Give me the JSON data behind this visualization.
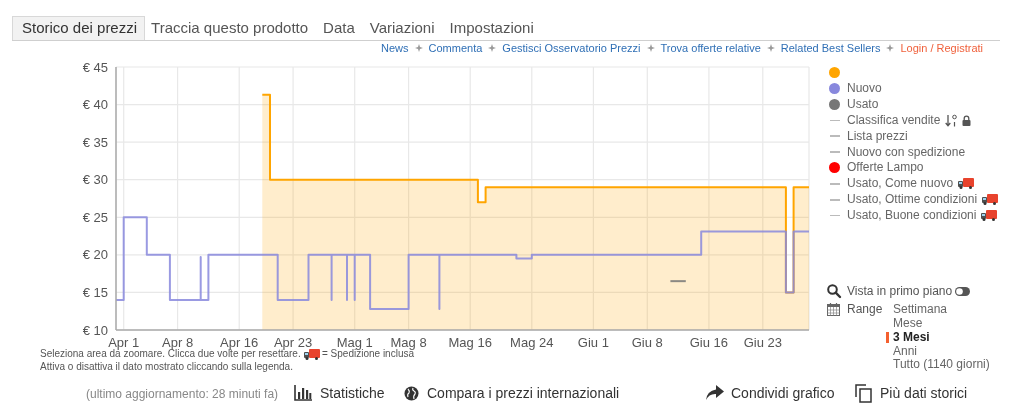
{
  "chart_data": {
    "type": "step",
    "xlim": [
      "--03-31",
      "--06-29"
    ],
    "xticks": [
      {
        "value": "--04-01",
        "label": "Apr 1"
      },
      {
        "value": "--04-08",
        "label": "Apr 8"
      },
      {
        "value": "--04-16",
        "label": "Apr 16"
      },
      {
        "value": "--04-23",
        "label": "Apr 23"
      },
      {
        "value": "--05-01",
        "label": "Mag 1"
      },
      {
        "value": "--05-08",
        "label": "Mag 8"
      },
      {
        "value": "--05-16",
        "label": "Mag 16"
      },
      {
        "value": "--05-24",
        "label": "Mag 24"
      },
      {
        "value": "--06-01",
        "label": "Giu 1"
      },
      {
        "value": "--06-08",
        "label": "Giu 8"
      },
      {
        "value": "--06-16",
        "label": "Giu 16"
      },
      {
        "value": "--06-23",
        "label": "Giu 23"
      }
    ],
    "ylim": [
      10,
      45
    ],
    "yticks": [
      {
        "value": 10,
        "label": "€ 10"
      },
      {
        "value": 15,
        "label": "€ 15"
      },
      {
        "value": 20,
        "label": "€ 20"
      },
      {
        "value": 25,
        "label": "€ 25"
      },
      {
        "value": 30,
        "label": "€ 30"
      },
      {
        "value": 35,
        "label": "€ 35"
      },
      {
        "value": 40,
        "label": "€ 40"
      },
      {
        "value": 45,
        "label": "€ 45"
      }
    ],
    "grid": true,
    "legend": "right",
    "series": [
      {
        "type": "area",
        "color": "#ffa500",
        "x": [
          "--04-19",
          "--04-20",
          "--04-20",
          "--05-17",
          "--05-17",
          "--05-18",
          "--05-18",
          "--06-26",
          "--06-26",
          "--06-27",
          "--06-27",
          "--06-29"
        ],
        "values": [
          41.3,
          41.3,
          30,
          30,
          27,
          27,
          29,
          29,
          15,
          15,
          29,
          29
        ]
      },
      {
        "name": "Nuovo",
        "color": "#8888dd",
        "x": [
          "--03-31",
          "--04-01",
          "--04-01",
          "--04-01",
          "--04-04",
          "--04-07",
          "--04-11",
          "--04-11",
          "--04-12",
          "--04-21",
          "--04-25",
          "--04-28",
          "--04-28",
          "--04-30",
          "--04-30",
          "--05-01",
          "--05-01",
          "--05-03",
          "--05-03",
          "--05-08",
          "--05-12",
          "--05-12",
          "--05-22",
          "--05-24",
          "--06-15",
          "--06-26",
          "--06-27",
          "--06-29"
        ],
        "values": [
          14,
          25,
          14,
          25,
          20,
          14,
          19.7,
          14,
          20,
          14,
          20,
          14,
          20,
          14,
          20,
          14,
          20,
          14,
          12.8,
          20,
          12.8,
          20,
          19.5,
          20,
          23.1,
          15,
          23.1,
          23.1
        ]
      },
      {
        "name": "Usato",
        "color": "#777777",
        "x": [
          "--06-11",
          "--06-13"
        ],
        "values": [
          16.5,
          16.5
        ]
      },
      {
        "name": "Classifica vendite",
        "type": "line",
        "color": "#bbbbbb"
      },
      {
        "name": "Lista prezzi",
        "type": "line",
        "color": "#bbbbbb"
      },
      {
        "name": "Nuovo con spedizione",
        "type": "line",
        "color": "#bbbbbb"
      },
      {
        "name": "Offerte Lampo",
        "color": "#ff0000"
      },
      {
        "name": "Usato, Come nuovo",
        "type": "line",
        "color": "#bbbbbb"
      },
      {
        "name": "Usato, Ottime condizioni",
        "type": "line",
        "color": "#bbbbbb"
      },
      {
        "name": "Usato, Buone condizioni",
        "type": "line",
        "color": "#bbbbbb"
      }
    ],
    "annotations": [
      "Storico dei prezzi",
      "Traccia questo prodotto",
      "Data",
      "Variazioni",
      "Impostazioni",
      "News",
      "Commenta",
      "Gestisci Osservatorio Prezzi",
      "Trova offerte relative",
      "Related Best Sellers",
      "Login / Registrati",
      "Seleziona area da zoomare. Clicca due volte per resettare.",
      "= Spedizione inclusa",
      "Attiva o disattiva il dato mostrato cliccando sulla legenda.",
      "Vista in primo piano",
      "Range",
      "Settimana",
      "Mese",
      "3 Mesi",
      "Anni",
      "Tutto (1140 giorni)",
      "(ultimo aggiornamento: 28 minuti fa)",
      "Statistiche",
      "Compara i prezzi internazionali",
      "Condividi grafico",
      "Più dati storici"
    ]
  }
}
